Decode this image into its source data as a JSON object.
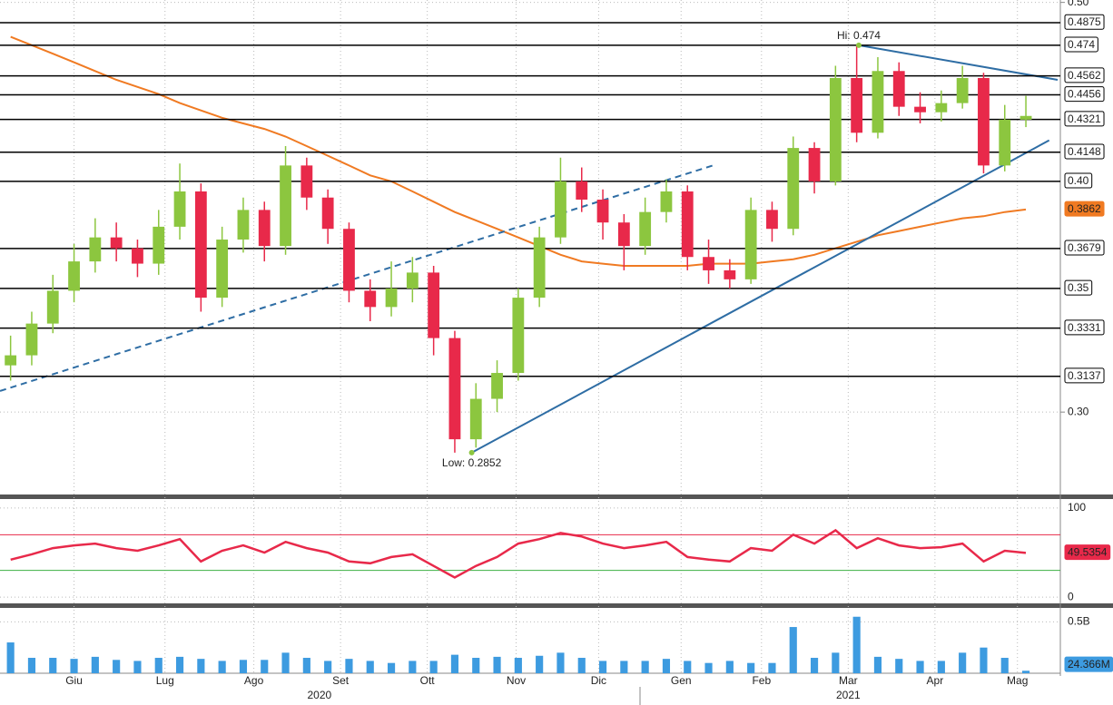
{
  "chart_data": {
    "type": "candlestick",
    "x": [
      0,
      1,
      2,
      3,
      4,
      5,
      6,
      7,
      8,
      9,
      10,
      11,
      12,
      13,
      14,
      15,
      16,
      17,
      18,
      19,
      20,
      21,
      22,
      23,
      24,
      25,
      26,
      27,
      28,
      29,
      30,
      31,
      32,
      33,
      34,
      35,
      36,
      37,
      38,
      39,
      40,
      41,
      42,
      43,
      44,
      45,
      46,
      47,
      48
    ],
    "open": [
      0.318,
      0.322,
      0.335,
      0.349,
      0.362,
      0.373,
      0.368,
      0.361,
      0.378,
      0.395,
      0.346,
      0.372,
      0.386,
      0.369,
      0.408,
      0.392,
      0.377,
      0.349,
      0.342,
      0.35,
      0.357,
      0.329,
      0.29,
      0.305,
      0.315,
      0.346,
      0.373,
      0.4,
      0.391,
      0.38,
      0.369,
      0.385,
      0.395,
      0.364,
      0.358,
      0.354,
      0.386,
      0.377,
      0.417,
      0.4,
      0.455,
      0.425,
      0.459,
      0.439,
      0.436,
      0.441,
      0.455,
      0.408,
      0.432
    ],
    "high": [
      0.33,
      0.34,
      0.356,
      0.37,
      0.382,
      0.38,
      0.372,
      0.386,
      0.409,
      0.399,
      0.378,
      0.392,
      0.39,
      0.418,
      0.412,
      0.396,
      0.38,
      0.354,
      0.362,
      0.364,
      0.36,
      0.332,
      0.311,
      0.32,
      0.35,
      0.378,
      0.412,
      0.407,
      0.396,
      0.384,
      0.392,
      0.401,
      0.398,
      0.372,
      0.363,
      0.392,
      0.39,
      0.423,
      0.42,
      0.462,
      0.474,
      0.467,
      0.464,
      0.447,
      0.448,
      0.462,
      0.458,
      0.44,
      0.445
    ],
    "low": [
      0.312,
      0.318,
      0.331,
      0.344,
      0.357,
      0.362,
      0.355,
      0.356,
      0.372,
      0.34,
      0.342,
      0.366,
      0.362,
      0.365,
      0.386,
      0.37,
      0.344,
      0.336,
      0.338,
      0.344,
      0.322,
      0.2852,
      0.287,
      0.3,
      0.312,
      0.342,
      0.37,
      0.385,
      0.372,
      0.358,
      0.365,
      0.38,
      0.358,
      0.352,
      0.35,
      0.352,
      0.371,
      0.374,
      0.394,
      0.398,
      0.42,
      0.422,
      0.434,
      0.43,
      0.431,
      0.438,
      0.404,
      0.405,
      0.428
    ],
    "close": [
      0.322,
      0.335,
      0.349,
      0.362,
      0.373,
      0.368,
      0.361,
      0.378,
      0.395,
      0.346,
      0.372,
      0.386,
      0.369,
      0.408,
      0.392,
      0.377,
      0.349,
      0.342,
      0.35,
      0.357,
      0.329,
      0.29,
      0.305,
      0.315,
      0.346,
      0.373,
      0.4,
      0.391,
      0.38,
      0.369,
      0.385,
      0.395,
      0.364,
      0.358,
      0.354,
      0.386,
      0.377,
      0.417,
      0.4,
      0.455,
      0.425,
      0.459,
      0.439,
      0.436,
      0.441,
      0.455,
      0.408,
      0.432,
      0.434
    ],
    "up_color": "#8cc63f",
    "down_color": "#e8294a",
    "xlim": [
      -0.5,
      49.5
    ],
    "xticks": [
      {
        "value": 3.0,
        "label": "Giu"
      },
      {
        "value": 7.3,
        "label": "Lug"
      },
      {
        "value": 11.5,
        "label": "Ago"
      },
      {
        "value": 15.6,
        "label": "Set"
      },
      {
        "value": 19.7,
        "label": "Ott"
      },
      {
        "value": 23.9,
        "label": "Nov"
      },
      {
        "value": 27.8,
        "label": "Dic"
      },
      {
        "value": 31.7,
        "label": "Gen"
      },
      {
        "value": 35.5,
        "label": "Feb"
      },
      {
        "value": 39.6,
        "label": "Mar"
      },
      {
        "value": 43.7,
        "label": "Apr"
      },
      {
        "value": 47.6,
        "label": "Mag"
      }
    ],
    "year_ticks": [
      {
        "value": 14.6,
        "label": "2020"
      },
      {
        "value": 39.6,
        "label": "2021"
      }
    ],
    "ylim": [
      0.2707,
      0.5015
    ],
    "log_scale": true,
    "grid": true,
    "yticks": [
      {
        "value": 0.5,
        "label": "0.50"
      },
      {
        "value": 0.3,
        "label": "0.30"
      }
    ],
    "levels": [
      0.4875,
      0.474,
      0.4562,
      0.4456,
      0.4321,
      0.4148,
      {
        "value": 0.4,
        "label": "0.40"
      },
      0.3679,
      0.35,
      0.3331,
      0.3137
    ],
    "ma": {
      "color": "#f07a22",
      "values": [
        0.479,
        0.474,
        0.469,
        0.464,
        0.459,
        0.454,
        0.45,
        0.446,
        0.441,
        0.437,
        0.433,
        0.43,
        0.427,
        0.423,
        0.418,
        0.413,
        0.408,
        0.403,
        0.4,
        0.395,
        0.39,
        0.385,
        0.381,
        0.377,
        0.373,
        0.369,
        0.365,
        0.362,
        0.361,
        0.36,
        0.36,
        0.36,
        0.36,
        0.361,
        0.361,
        0.361,
        0.362,
        0.363,
        0.365,
        0.368,
        0.371,
        0.374,
        0.376,
        0.378,
        0.38,
        0.382,
        0.383,
        0.385,
        0.3862
      ]
    },
    "trendlines": [
      {
        "x": [
          -0.5,
          33.2
        ],
        "y": [
          0.308,
          0.408
        ],
        "color": "#2e6da4",
        "dashed": true
      },
      {
        "x": [
          21.8,
          49.1
        ],
        "y": [
          0.2852,
          0.421
        ],
        "color": "#2e6da4",
        "dashed": false
      },
      {
        "x": [
          40.1,
          49.5
        ],
        "y": [
          0.474,
          0.454
        ],
        "color": "#2e6da4",
        "dashed": false
      }
    ],
    "annotations": [
      {
        "text": "Hi: 0.474",
        "x": 40.1,
        "y": 0.474
      },
      {
        "text": "Low: 0.2852",
        "x": 21.8,
        "y": 0.2852
      }
    ],
    "annotation_color": "#8cc63f",
    "rsi": {
      "color": "#e8294a",
      "ylim": [
        -7,
        110
      ],
      "yticks": [
        0,
        100
      ],
      "upper": 70,
      "lower": 30,
      "values": [
        42,
        48,
        55,
        58,
        60,
        55,
        52,
        58,
        65,
        40,
        52,
        58,
        50,
        62,
        55,
        50,
        40,
        38,
        45,
        48,
        35,
        22,
        35,
        45,
        60,
        65,
        72,
        68,
        60,
        55,
        58,
        62,
        45,
        42,
        40,
        55,
        52,
        70,
        60,
        75,
        55,
        66,
        58,
        55,
        56,
        60,
        40,
        52,
        49.5354
      ]
    },
    "volume": {
      "color": "#3d9be0",
      "ylim": [
        0,
        0.636
      ],
      "yticks": [
        {
          "value": 0.5,
          "label": "0.5B"
        }
      ],
      "last_value_label": "24.366M",
      "values": [
        0.3,
        0.15,
        0.15,
        0.14,
        0.16,
        0.13,
        0.12,
        0.15,
        0.16,
        0.14,
        0.12,
        0.13,
        0.13,
        0.2,
        0.15,
        0.12,
        0.14,
        0.12,
        0.1,
        0.12,
        0.12,
        0.18,
        0.15,
        0.16,
        0.15,
        0.17,
        0.2,
        0.15,
        0.12,
        0.12,
        0.12,
        0.14,
        0.12,
        0.1,
        0.12,
        0.1,
        0.1,
        0.45,
        0.15,
        0.2,
        0.55,
        0.16,
        0.14,
        0.12,
        0.12,
        0.2,
        0.25,
        0.15,
        0.024366
      ]
    }
  }
}
